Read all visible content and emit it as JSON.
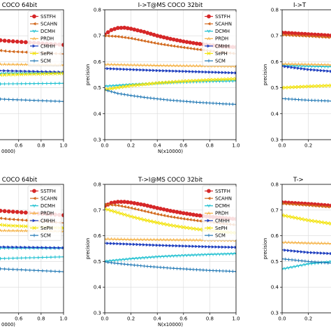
{
  "chart_data": [
    {
      "type": "line",
      "title": "COCO 64bit",
      "xlabel": "0000)",
      "ylabel": "",
      "xlim": [
        -0.5,
        1.0
      ],
      "ylim": [
        0.3,
        0.8
      ],
      "xticks": [
        "0.4",
        "0.6",
        "0.8",
        "1.0"
      ],
      "yticks": [],
      "grid": true,
      "legend": "top-right",
      "series": [
        {
          "name": "SSTFH",
          "x": [
            -0.5,
            0.0,
            0.5,
            1.0
          ],
          "y": [
            0.705,
            0.7,
            0.68,
            0.665
          ]
        },
        {
          "name": "SCAHN",
          "x": [
            -0.5,
            0.0,
            0.5,
            1.0
          ],
          "y": [
            0.685,
            0.665,
            0.64,
            0.63
          ]
        },
        {
          "name": "DCMH",
          "x": [
            -0.5,
            0.0,
            0.5,
            1.0
          ],
          "y": [
            0.55,
            0.55,
            0.555,
            0.557
          ]
        },
        {
          "name": "PRDH",
          "x": [
            -0.5,
            0.0,
            0.5,
            1.0
          ],
          "y": [
            0.595,
            0.592,
            0.59,
            0.588
          ]
        },
        {
          "name": "CMHH",
          "x": [
            -0.5,
            0.0,
            0.5,
            1.0
          ],
          "y": [
            0.575,
            0.57,
            0.565,
            0.56
          ]
        },
        {
          "name": "SePH",
          "x": [
            -0.5,
            0.0,
            0.5,
            1.0
          ],
          "y": [
            0.53,
            0.54,
            0.55,
            0.555
          ]
        },
        {
          "name": "SCM",
          "x": [
            -0.5,
            0.0,
            0.5,
            1.0
          ],
          "y": [
            0.475,
            0.465,
            0.455,
            0.447
          ]
        },
        {
          "name": "",
          "x": [
            -0.5,
            0.0,
            0.5,
            1.0
          ],
          "y": [
            0.51,
            0.512,
            0.515,
            0.517
          ]
        }
      ]
    },
    {
      "type": "line",
      "title": "I->T@MS COCO 32bit",
      "xlabel": "N(x10000)",
      "ylabel": "precision",
      "xlim": [
        0.0,
        1.0
      ],
      "ylim": [
        0.3,
        0.8
      ],
      "xticks": [
        "0.0",
        "0.2",
        "0.4",
        "0.6",
        "0.8",
        "1.0"
      ],
      "yticks": [
        "0.3",
        "0.4",
        "0.5",
        "0.6",
        "0.7",
        "0.8"
      ],
      "grid": true,
      "legend": "top-right",
      "series": [
        {
          "name": "SSTFH",
          "x": [
            0.0,
            0.05,
            0.1,
            0.15,
            0.2,
            0.3,
            0.4,
            0.5,
            0.6,
            0.7,
            0.8,
            0.9,
            1.0
          ],
          "y": [
            0.705,
            0.722,
            0.73,
            0.731,
            0.727,
            0.715,
            0.7,
            0.688,
            0.678,
            0.67,
            0.664,
            0.659,
            0.656
          ]
        },
        {
          "name": "SCAHN",
          "x": [
            0.0,
            0.1,
            0.2,
            0.3,
            0.4,
            0.5,
            0.6,
            0.7,
            0.8,
            0.9,
            1.0
          ],
          "y": [
            0.7,
            0.697,
            0.69,
            0.68,
            0.67,
            0.662,
            0.655,
            0.648,
            0.642,
            0.636,
            0.631
          ]
        },
        {
          "name": "DCMH",
          "x": [
            0.0,
            0.2,
            0.4,
            0.6,
            0.8,
            1.0
          ],
          "y": [
            0.505,
            0.512,
            0.517,
            0.521,
            0.524,
            0.526
          ]
        },
        {
          "name": "PRDH",
          "x": [
            0.0,
            0.2,
            0.4,
            0.6,
            0.8,
            1.0
          ],
          "y": [
            0.59,
            0.588,
            0.586,
            0.585,
            0.584,
            0.583
          ]
        },
        {
          "name": "CMHH",
          "x": [
            0.0,
            0.2,
            0.4,
            0.6,
            0.8,
            1.0
          ],
          "y": [
            0.574,
            0.57,
            0.566,
            0.563,
            0.56,
            0.557
          ]
        },
        {
          "name": "SePH",
          "x": [
            0.0,
            0.2,
            0.4,
            0.6,
            0.8,
            1.0
          ],
          "y": [
            0.493,
            0.508,
            0.518,
            0.525,
            0.53,
            0.534
          ]
        },
        {
          "name": "SCM",
          "x": [
            0.0,
            0.1,
            0.2,
            0.3,
            0.4,
            0.5,
            0.6,
            0.7,
            0.8,
            0.9,
            1.0
          ],
          "y": [
            0.492,
            0.478,
            0.47,
            0.463,
            0.457,
            0.452,
            0.448,
            0.444,
            0.441,
            0.438,
            0.436
          ]
        }
      ]
    },
    {
      "type": "line",
      "title": "I->T",
      "xlabel": "",
      "ylabel": "precision",
      "xlim": [
        0.0,
        1.0
      ],
      "ylim": [
        0.3,
        0.8
      ],
      "xticks": [
        "0.0",
        "0.2",
        "0.4"
      ],
      "yticks": [
        "0.3",
        "0.4",
        "0.5",
        "0.6",
        "0.7",
        "0.8"
      ],
      "grid": true,
      "legend": "",
      "series": [
        {
          "name": "SSTFH",
          "x": [
            0.0,
            0.2,
            0.4,
            0.6,
            0.8,
            1.0
          ],
          "y": [
            0.712,
            0.706,
            0.7,
            0.695,
            0.69,
            0.686
          ]
        },
        {
          "name": "SCAHN",
          "x": [
            0.0,
            0.2,
            0.4,
            0.6,
            0.8,
            1.0
          ],
          "y": [
            0.703,
            0.698,
            0.692,
            0.687,
            0.682,
            0.678
          ]
        },
        {
          "name": "DCMH",
          "x": [
            0.0,
            0.2,
            0.4,
            0.6,
            0.8,
            1.0
          ],
          "y": [
            0.585,
            0.582,
            0.58,
            0.578,
            0.576,
            0.575
          ]
        },
        {
          "name": "PRDH",
          "x": [
            0.0,
            0.2,
            0.4,
            0.6,
            0.8,
            1.0
          ],
          "y": [
            0.592,
            0.59,
            0.588,
            0.587,
            0.586,
            0.585
          ]
        },
        {
          "name": "CMHH",
          "x": [
            0.0,
            0.2,
            0.4,
            0.6,
            0.8,
            1.0
          ],
          "y": [
            0.583,
            0.57,
            0.562,
            0.556,
            0.552,
            0.549
          ]
        },
        {
          "name": "SePH",
          "x": [
            0.0,
            0.2,
            0.4,
            0.6,
            0.8,
            1.0
          ],
          "y": [
            0.5,
            0.505,
            0.509,
            0.512,
            0.515,
            0.517
          ]
        },
        {
          "name": "SCM",
          "x": [
            0.0,
            0.2,
            0.4,
            0.6,
            0.8,
            1.0
          ],
          "y": [
            0.458,
            0.452,
            0.448,
            0.445,
            0.442,
            0.44
          ]
        }
      ]
    },
    {
      "type": "line",
      "title": "COCO 64bit",
      "xlabel": "0000)",
      "ylabel": "",
      "xlim": [
        -0.5,
        1.0
      ],
      "ylim": [
        0.3,
        0.8
      ],
      "xticks": [
        "0.4",
        "0.6",
        "0.8",
        "1.0"
      ],
      "yticks": [],
      "grid": true,
      "legend": "top-right",
      "series": [
        {
          "name": "SSTFH",
          "x": [
            -0.5,
            0.0,
            0.5,
            1.0
          ],
          "y": [
            0.715,
            0.712,
            0.695,
            0.68
          ]
        },
        {
          "name": "SCAHN",
          "x": [
            -0.5,
            0.0,
            0.5,
            1.0
          ],
          "y": [
            0.7,
            0.69,
            0.665,
            0.65
          ]
        },
        {
          "name": "DCMH",
          "x": [
            -0.5,
            0.0,
            0.5,
            1.0
          ],
          "y": [
            0.555,
            0.553,
            0.552,
            0.551
          ]
        },
        {
          "name": "PRDH",
          "x": [
            -0.5,
            0.0,
            0.5,
            1.0
          ],
          "y": [
            0.625,
            0.622,
            0.62,
            0.618
          ]
        },
        {
          "name": "CMHH",
          "x": [
            -0.5,
            0.0,
            0.5,
            1.0
          ],
          "y": [
            0.565,
            0.56,
            0.556,
            0.553
          ]
        },
        {
          "name": "SePH",
          "x": [
            -0.5,
            0.0,
            0.5,
            1.0
          ],
          "y": [
            0.69,
            0.66,
            0.64,
            0.63
          ]
        },
        {
          "name": "SCM",
          "x": [
            -0.5,
            0.0,
            0.5,
            1.0
          ],
          "y": [
            0.49,
            0.482,
            0.47,
            0.46
          ]
        },
        {
          "name": "",
          "x": [
            -0.5,
            0.0,
            0.5,
            1.0
          ],
          "y": [
            0.495,
            0.505,
            0.512,
            0.518
          ]
        }
      ]
    },
    {
      "type": "line",
      "title": "T->I@MS COCO 32bit",
      "xlabel": "N(x10000)",
      "ylabel": "precision",
      "xlim": [
        0.0,
        1.0
      ],
      "ylim": [
        0.3,
        0.8
      ],
      "xticks": [
        "0.0",
        "0.2",
        "0.4",
        "0.6",
        "0.8",
        "1.0"
      ],
      "yticks": [
        "0.3",
        "0.4",
        "0.5",
        "0.6",
        "0.7",
        "0.8"
      ],
      "grid": true,
      "legend": "top-right",
      "series": [
        {
          "name": "SSTFH",
          "x": [
            0.0,
            0.05,
            0.1,
            0.15,
            0.2,
            0.3,
            0.4,
            0.5,
            0.6,
            0.7,
            0.8,
            0.9,
            1.0
          ],
          "y": [
            0.715,
            0.728,
            0.732,
            0.732,
            0.729,
            0.72,
            0.708,
            0.697,
            0.688,
            0.68,
            0.674,
            0.669,
            0.665
          ]
        },
        {
          "name": "SCAHN",
          "x": [
            0.0,
            0.1,
            0.2,
            0.3,
            0.4,
            0.5,
            0.6,
            0.7,
            0.8,
            0.9,
            1.0
          ],
          "y": [
            0.722,
            0.718,
            0.708,
            0.696,
            0.684,
            0.674,
            0.666,
            0.659,
            0.653,
            0.647,
            0.642
          ]
        },
        {
          "name": "DCMH",
          "x": [
            0.0,
            0.2,
            0.4,
            0.6,
            0.8,
            1.0
          ],
          "y": [
            0.5,
            0.51,
            0.518,
            0.523,
            0.527,
            0.53
          ]
        },
        {
          "name": "PRDH",
          "x": [
            0.0,
            0.2,
            0.4,
            0.6,
            0.8,
            1.0
          ],
          "y": [
            0.588,
            0.586,
            0.585,
            0.584,
            0.583,
            0.582
          ]
        },
        {
          "name": "CMHH",
          "x": [
            0.0,
            0.2,
            0.4,
            0.6,
            0.8,
            1.0
          ],
          "y": [
            0.571,
            0.567,
            0.563,
            0.56,
            0.557,
            0.555
          ]
        },
        {
          "name": "SePH",
          "x": [
            0.0,
            0.1,
            0.2,
            0.3,
            0.4,
            0.5,
            0.6,
            0.7,
            0.8,
            0.9,
            1.0
          ],
          "y": [
            0.705,
            0.69,
            0.675,
            0.662,
            0.651,
            0.641,
            0.633,
            0.626,
            0.62,
            0.615,
            0.611
          ]
        },
        {
          "name": "SCM",
          "x": [
            0.0,
            0.1,
            0.2,
            0.3,
            0.4,
            0.5,
            0.6,
            0.7,
            0.8,
            0.9,
            1.0
          ],
          "y": [
            0.498,
            0.492,
            0.487,
            0.482,
            0.478,
            0.474,
            0.471,
            0.468,
            0.465,
            0.463,
            0.461
          ]
        }
      ]
    },
    {
      "type": "line",
      "title": "T->",
      "xlabel": "",
      "ylabel": "precision",
      "xlim": [
        0.0,
        1.0
      ],
      "ylim": [
        0.3,
        0.8
      ],
      "xticks": [
        "0.0",
        "0.2",
        "0.4"
      ],
      "yticks": [
        "0.3",
        "0.4",
        "0.5",
        "0.6",
        "0.7",
        "0.8"
      ],
      "grid": true,
      "legend": "",
      "series": [
        {
          "name": "SSTFH",
          "x": [
            0.0,
            0.2,
            0.4,
            0.6,
            0.8,
            1.0
          ],
          "y": [
            0.73,
            0.724,
            0.716,
            0.708,
            0.701,
            0.695
          ]
        },
        {
          "name": "SCAHN",
          "x": [
            0.0,
            0.2,
            0.4,
            0.6,
            0.8,
            1.0
          ],
          "y": [
            0.725,
            0.718,
            0.71,
            0.702,
            0.695,
            0.69
          ]
        },
        {
          "name": "DCMH",
          "x": [
            0.0,
            0.2,
            0.4,
            0.6,
            0.8,
            1.0
          ],
          "y": [
            0.47,
            0.49,
            0.5,
            0.506,
            0.51,
            0.513
          ]
        },
        {
          "name": "PRDH",
          "x": [
            0.0,
            0.2,
            0.4,
            0.6,
            0.8,
            1.0
          ],
          "y": [
            0.575,
            0.572,
            0.57,
            0.568,
            0.567,
            0.566
          ]
        },
        {
          "name": "CMHH",
          "x": [
            0.0,
            0.2,
            0.4,
            0.6,
            0.8,
            1.0
          ],
          "y": [
            0.545,
            0.535,
            0.53,
            0.527,
            0.524,
            0.522
          ]
        },
        {
          "name": "SePH",
          "x": [
            0.0,
            0.2,
            0.4,
            0.6,
            0.8,
            1.0
          ],
          "y": [
            0.68,
            0.66,
            0.645,
            0.633,
            0.623,
            0.615
          ]
        },
        {
          "name": "SCM",
          "x": [
            0.0,
            0.2,
            0.4,
            0.6,
            0.8,
            1.0
          ],
          "y": [
            0.51,
            0.5,
            0.492,
            0.487,
            0.483,
            0.48
          ]
        }
      ]
    }
  ],
  "colors": {
    "SSTFH": "#d62728",
    "SCAHN": "#d2691e",
    "DCMH": "#17becf",
    "PRDH": "#f5b041",
    "CMHH": "#1f3fbf",
    "SePH": "#f2e205",
    "SCM": "#1f77b4",
    "extra": "#17becf"
  },
  "markers": {
    "SSTFH": "circle",
    "SCAHN": "triangle-left",
    "DCMH": "tri-down",
    "PRDH": "tri-up",
    "CMHH": "triangle-right",
    "SePH": "x",
    "SCM": "plus",
    "extra": "plus"
  }
}
